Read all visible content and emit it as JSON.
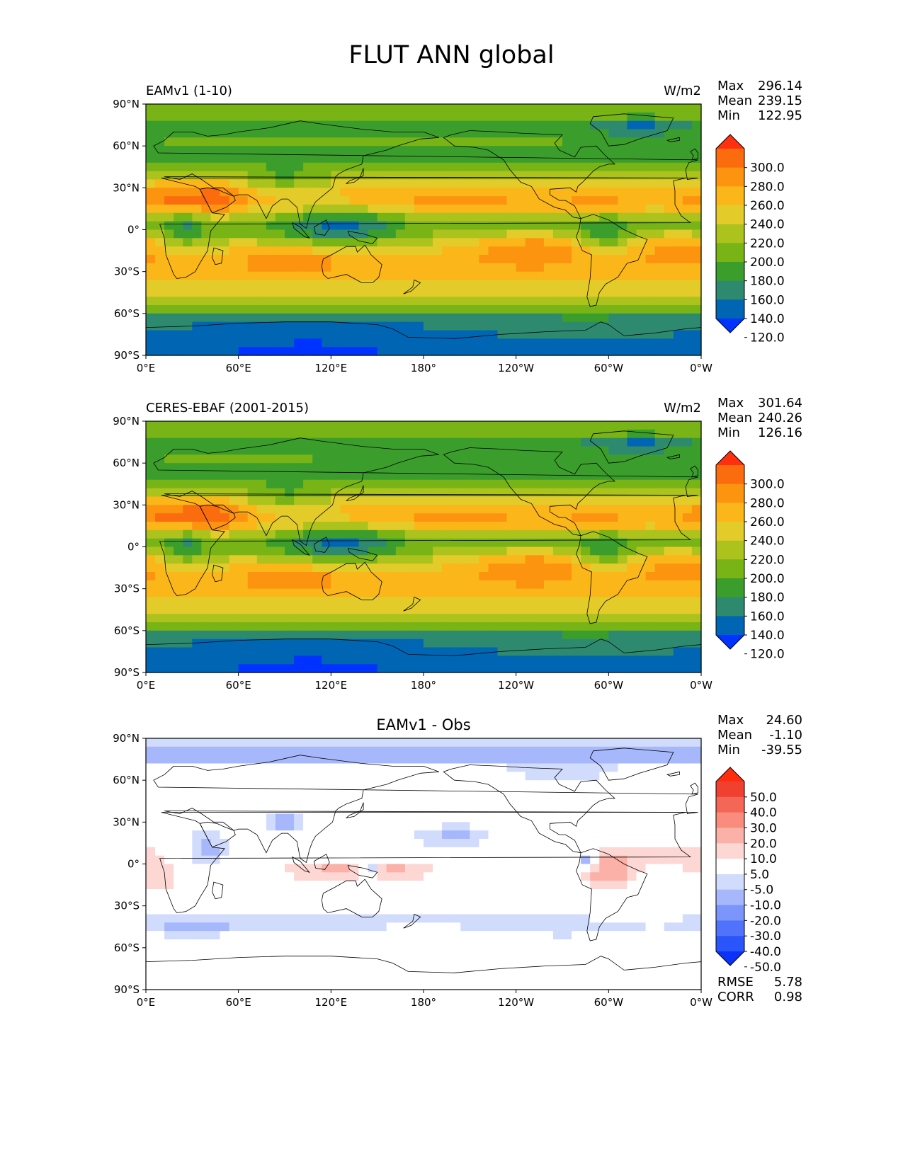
{
  "figure_title": "FLUT ANN global",
  "colors": {
    "field": [
      "#0033ff",
      "#0066b3",
      "#2e8a6e",
      "#3b9e2c",
      "#78b416",
      "#acc21d",
      "#e3cc2a",
      "#fbb619",
      "#fc9410",
      "#fb6c0e",
      "#ff3010"
    ],
    "diff": [
      "#0c32f9",
      "#2a55fb",
      "#5173fb",
      "#7b95fb",
      "#a6b7fb",
      "#d1dbfc",
      "#ffffff",
      "#fcd7d3",
      "#fbb1a7",
      "#f98c7d",
      "#f46656",
      "#f04030",
      "#ff2d0d"
    ]
  },
  "chart_data": [
    {
      "type": "heatmap",
      "name": "test",
      "title": "EAMv1 (1-10)",
      "units": "W/m2",
      "stats": {
        "max_label": "Max",
        "max": "296.14",
        "mean_label": "Mean",
        "mean": "239.15",
        "min_label": "Min",
        "min": "122.95"
      },
      "colorbar": {
        "levels": [
          120,
          140,
          160,
          180,
          200,
          220,
          240,
          260,
          280,
          300
        ],
        "labels": [
          "300.0",
          "280.0",
          "260.0",
          "240.0",
          "220.0",
          "200.0",
          "180.0",
          "160.0",
          "140.0",
          "120.0"
        ]
      },
      "x_ticks": [
        "0°E",
        "60°E",
        "120°E",
        "180°",
        "120°W",
        "60°W",
        "0°W"
      ],
      "y_ticks": [
        "90°N",
        "60°N",
        "30°N",
        "0°",
        "30°S",
        "60°S",
        "90°S"
      ],
      "xlim": [
        0,
        360
      ],
      "ylim": [
        -90,
        90
      ]
    },
    {
      "type": "heatmap",
      "name": "reference",
      "title": "CERES-EBAF (2001-2015)",
      "units": "W/m2",
      "stats": {
        "max_label": "Max",
        "max": "301.64",
        "mean_label": "Mean",
        "mean": "240.26",
        "min_label": "Min",
        "min": "126.16"
      },
      "colorbar": {
        "levels": [
          120,
          140,
          160,
          180,
          200,
          220,
          240,
          260,
          280,
          300
        ],
        "labels": [
          "300.0",
          "280.0",
          "260.0",
          "240.0",
          "220.0",
          "200.0",
          "180.0",
          "160.0",
          "140.0",
          "120.0"
        ]
      },
      "x_ticks": [
        "0°E",
        "60°E",
        "120°E",
        "180°",
        "120°W",
        "60°W",
        "0°W"
      ],
      "y_ticks": [
        "90°N",
        "60°N",
        "30°N",
        "0°",
        "30°S",
        "60°S",
        "90°S"
      ],
      "xlim": [
        0,
        360
      ],
      "ylim": [
        -90,
        90
      ]
    },
    {
      "type": "heatmap",
      "name": "difference",
      "title": "EAMv1 - Obs",
      "units": "",
      "stats": {
        "max_label": "Max",
        "max": "24.60",
        "mean_label": "Mean",
        "mean": "-1.10",
        "min_label": "Min",
        "min": "-39.55"
      },
      "colorbar": {
        "levels": [
          -50,
          -40,
          -30,
          -20,
          -10,
          -5,
          5,
          10,
          20,
          30,
          40,
          50
        ],
        "labels": [
          "50.0",
          "40.0",
          "30.0",
          "20.0",
          "10.0",
          "5.0",
          "-5.0",
          "-10.0",
          "-20.0",
          "-30.0",
          "-40.0",
          "-50.0"
        ]
      },
      "metrics": {
        "rmse_label": "RMSE",
        "rmse": "5.78",
        "corr_label": "CORR",
        "corr": "0.98"
      },
      "x_ticks": [
        "0°E",
        "60°E",
        "120°E",
        "180°",
        "120°W",
        "60°W",
        "0°W"
      ],
      "y_ticks": [
        "90°N",
        "60°N",
        "30°N",
        "0°",
        "30°S",
        "60°S",
        "90°S"
      ],
      "xlim": [
        0,
        360
      ],
      "ylim": [
        -90,
        90
      ]
    }
  ]
}
